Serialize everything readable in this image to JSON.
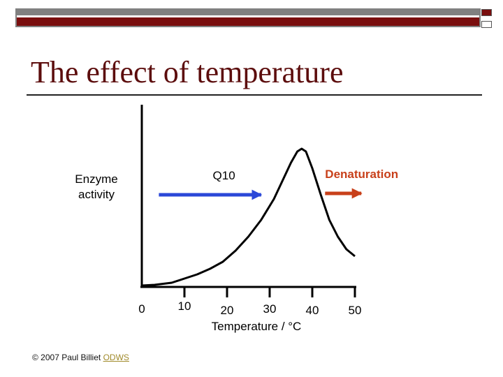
{
  "slide": {
    "title": "The effect of temperature",
    "colors": {
      "title": "#5c0d0d",
      "banner": "#7a0e0e",
      "rule": "#222222"
    }
  },
  "chart_data": {
    "type": "line",
    "title": "The effect of temperature",
    "xlabel": "Temperature / °C",
    "ylabel": "Enzyme\nactivity",
    "xlim": [
      0,
      50
    ],
    "ylim": [
      0,
      100
    ],
    "x_ticks": [
      0,
      10,
      20,
      30,
      40,
      50
    ],
    "x_tick_labels": [
      "0",
      "10",
      "20",
      "30",
      "40",
      "50"
    ],
    "grid": false,
    "series": [
      {
        "name": "Enzyme activity",
        "color": "#000000",
        "x": [
          0,
          3,
          7,
          10,
          13,
          16,
          19,
          22,
          25,
          28,
          31,
          33,
          35,
          36.5,
          37.5,
          38.5,
          40,
          42,
          44,
          46,
          48,
          50
        ],
        "y": [
          0,
          0.5,
          2,
          5,
          8,
          12,
          17,
          25,
          35,
          47,
          62,
          75,
          88,
          96,
          98,
          96,
          84,
          65,
          47,
          35,
          26,
          21
        ]
      }
    ],
    "annotations": [
      {
        "text": "Q10",
        "arrow_from_x": 4,
        "arrow_to_x": 28,
        "y": 65,
        "color": "#2b48d8"
      },
      {
        "text": "Denaturation",
        "arrow_from_x": 43,
        "arrow_to_x": 51.5,
        "y": 66,
        "color": "#c8401a"
      }
    ]
  },
  "footer": {
    "credit": "© 2007 Paul Billiet",
    "link": "ODWS"
  }
}
